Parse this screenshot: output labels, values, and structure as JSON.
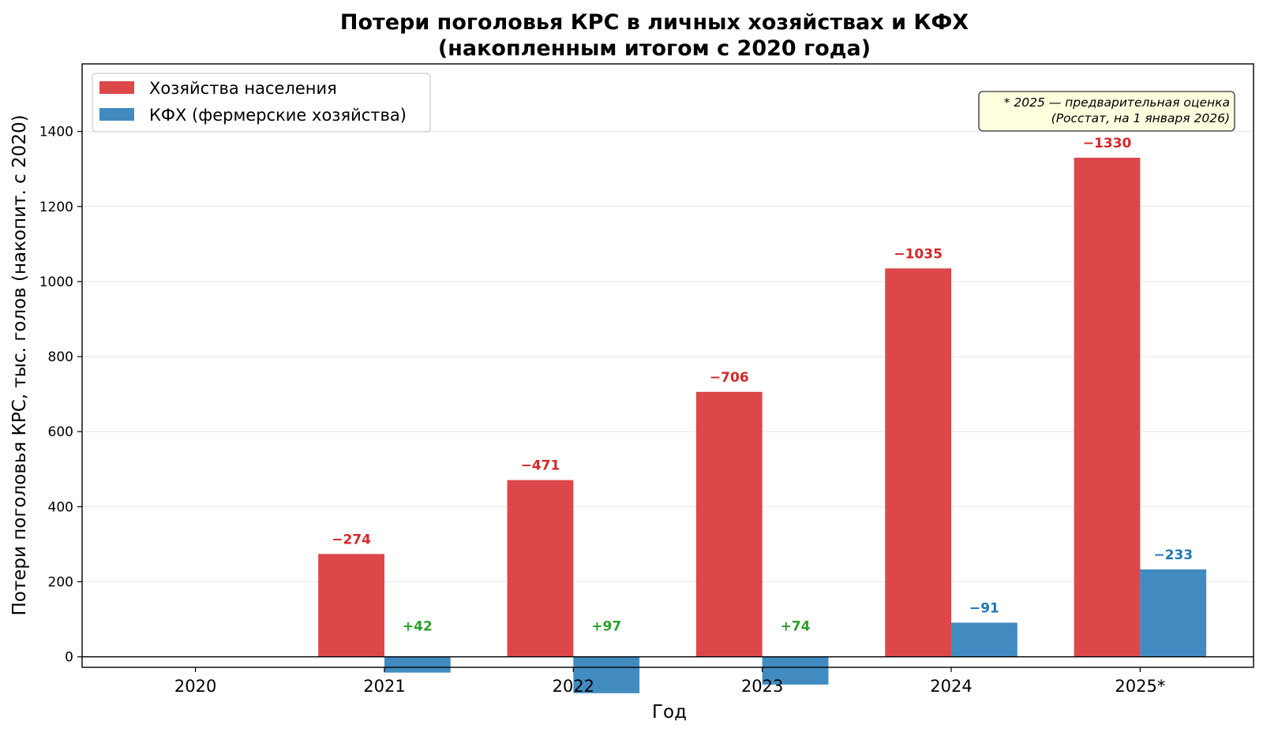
{
  "chart_data": {
    "type": "bar",
    "title_line1": "Потери поголовья КРС в личных хозяйствах и КФХ",
    "title_line2": "(накопленным итогом с 2020 года)",
    "xlabel": "Год",
    "ylabel": "Потери поголовья КРС, тыс. голов (накопит. с 2020)",
    "categories": [
      "2020",
      "2021",
      "2022",
      "2023",
      "2024",
      "2025*"
    ],
    "ylim": [
      -28,
      1580
    ],
    "yticks": [
      0,
      200,
      400,
      600,
      800,
      1000,
      1200,
      1400
    ],
    "grid": true,
    "legend_position": "upper left",
    "series": [
      {
        "name": "Хозяйства населения",
        "color": "#dc474a",
        "values": [
          0,
          274,
          471,
          706,
          1035,
          1330
        ],
        "labels": [
          "",
          "−274",
          "−471",
          "−706",
          "−1035",
          "−1330"
        ],
        "label_colors": [
          "#d62728",
          "#d62728",
          "#d62728",
          "#d62728",
          "#d62728",
          "#d62728"
        ]
      },
      {
        "name": "КФХ (фермерские хозяйства)",
        "color": "#418bc0",
        "values": [
          0,
          -42,
          -97,
          -74,
          91,
          233
        ],
        "labels": [
          "",
          "+42",
          "+97",
          "+74",
          "−91",
          "−233"
        ],
        "label_colors": [
          "#2ca02c",
          "#2ca02c",
          "#2ca02c",
          "#2ca02c",
          "#1f77b4",
          "#1f77b4"
        ]
      }
    ],
    "note_line1": "* 2025 — предварительная оценка",
    "note_line2": "(Росстат, на 1 января 2026)",
    "note_bg": "#ffffe0"
  }
}
